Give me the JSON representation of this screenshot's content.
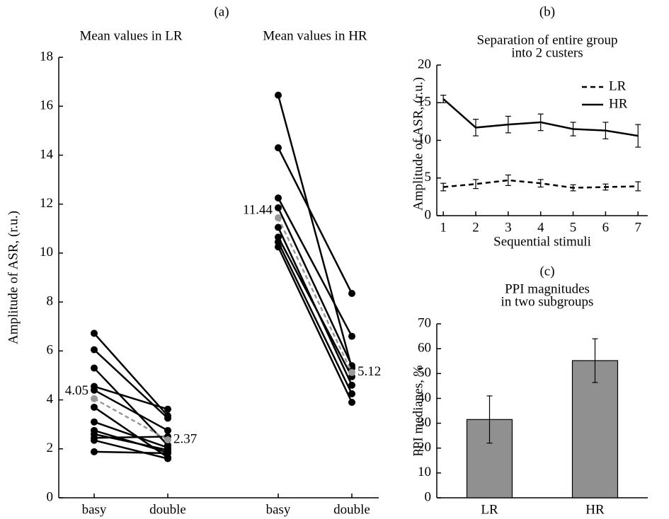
{
  "chart_data": [
    {
      "type": "slope",
      "title": "(a)",
      "ylabel": "Amplitude of ASR, (r.u.)",
      "categories": [
        "basy",
        "double",
        "basy",
        "double"
      ],
      "ylim": [
        0,
        18
      ],
      "yticks": [
        0,
        2,
        4,
        6,
        8,
        10,
        12,
        14,
        16,
        18
      ],
      "color": "#000000",
      "mean_color": "#999999",
      "groups": [
        {
          "name": "Mean values in LR",
          "mean": [
            4.05,
            2.37
          ],
          "subjects": [
            [
              6.72,
              3.35
            ],
            [
              6.05,
              3.25
            ],
            [
              5.3,
              2.15
            ],
            [
              4.55,
              3.62
            ],
            [
              4.4,
              2.75
            ],
            [
              3.7,
              1.65
            ],
            [
              3.1,
              2.05
            ],
            [
              2.75,
              1.85
            ],
            [
              2.6,
              1.95
            ],
            [
              2.45,
              2.5
            ],
            [
              2.35,
              1.6
            ],
            [
              1.88,
              1.82
            ]
          ]
        },
        {
          "name": "Mean values in HR",
          "mean": [
            11.44,
            5.12
          ],
          "subjects": [
            [
              16.45,
              5.3
            ],
            [
              14.3,
              8.35
            ],
            [
              12.25,
              6.6
            ],
            [
              11.85,
              5.4
            ],
            [
              11.05,
              4.6
            ],
            [
              10.65,
              4.95
            ],
            [
              10.45,
              4.25
            ],
            [
              10.25,
              3.9
            ]
          ]
        }
      ]
    },
    {
      "type": "line",
      "title": "(b)",
      "subtitle": [
        "Separation of entire group",
        "into 2 custers"
      ],
      "xlabel": "Sequential stimuli",
      "ylabel": "Amplitude of ASR, (r.u.)",
      "x": [
        1,
        2,
        3,
        4,
        5,
        6,
        7
      ],
      "xlim": [
        0.8,
        7.3
      ],
      "xticks": [
        1,
        2,
        3,
        4,
        5,
        6,
        7
      ],
      "ylim": [
        0,
        20
      ],
      "yticks": [
        0,
        5,
        10,
        15,
        20
      ],
      "legend": "top-right",
      "series": [
        {
          "name": "LR",
          "color": "#000000",
          "dash": true,
          "values": [
            3.8,
            4.2,
            4.7,
            4.3,
            3.7,
            3.8,
            3.9
          ],
          "errors": [
            0.5,
            0.6,
            0.7,
            0.5,
            0.4,
            0.4,
            0.6
          ]
        },
        {
          "name": "HR",
          "color": "#000000",
          "dash": false,
          "values": [
            15.5,
            11.7,
            12.1,
            12.4,
            11.5,
            11.3,
            10.6
          ],
          "errors": [
            0.5,
            1.1,
            1.1,
            1.1,
            0.9,
            1.1,
            1.5
          ]
        }
      ]
    },
    {
      "type": "bar",
      "title": "(c)",
      "subtitle": [
        "PPI magnitudes",
        "in two subgroups"
      ],
      "ylabel": "PPI medianes, %",
      "categories": [
        "LR",
        "HR"
      ],
      "values": [
        31.5,
        55.2
      ],
      "errors": [
        9.5,
        8.8
      ],
      "color": "#909090",
      "ylim": [
        0,
        70
      ],
      "yticks": [
        0,
        10,
        20,
        30,
        40,
        50,
        60,
        70
      ]
    }
  ]
}
